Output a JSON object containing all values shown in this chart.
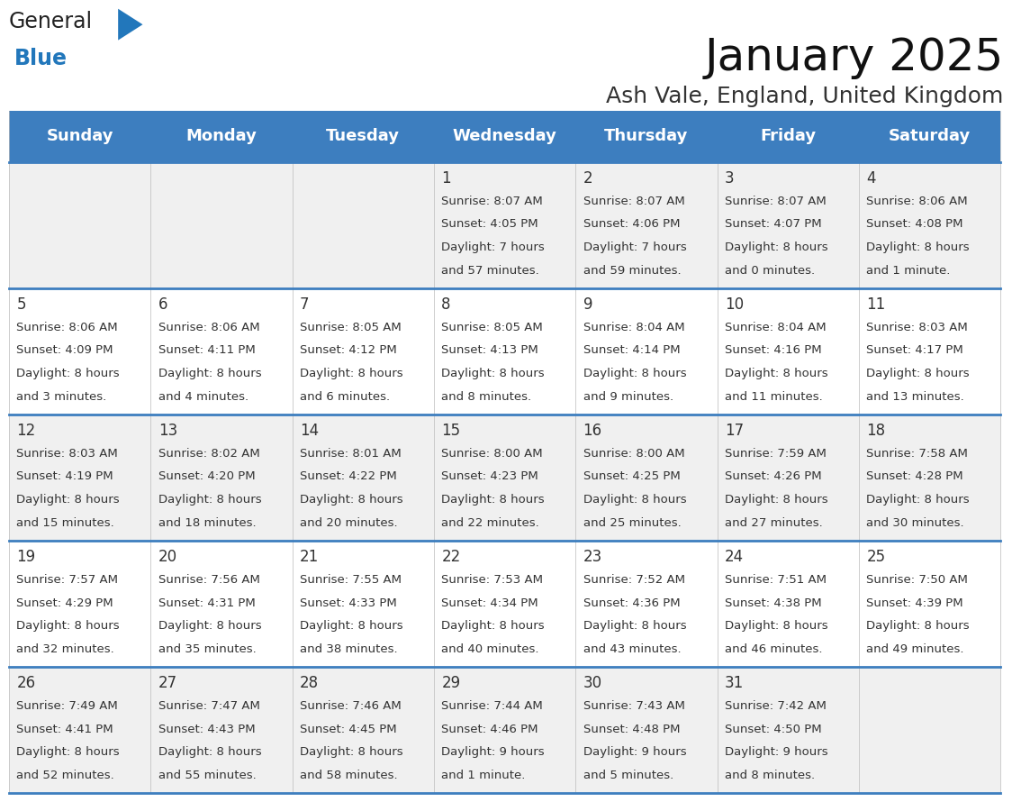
{
  "title": "January 2025",
  "subtitle": "Ash Vale, England, United Kingdom",
  "header_bg": "#3d7ebf",
  "header_text_color": "#ffffff",
  "cell_bg_row0": "#f0f0f0",
  "cell_bg_row1": "#ffffff",
  "cell_bg_row2": "#f0f0f0",
  "cell_bg_row3": "#ffffff",
  "cell_bg_row4": "#f0f0f0",
  "border_color": "#3d7ebf",
  "text_color": "#333333",
  "days_of_week": [
    "Sunday",
    "Monday",
    "Tuesday",
    "Wednesday",
    "Thursday",
    "Friday",
    "Saturday"
  ],
  "days": [
    {
      "day": 1,
      "col": 3,
      "row": 0,
      "sunrise": "8:07 AM",
      "sunset": "4:05 PM",
      "dl1": "Daylight: 7 hours",
      "dl2": "and 57 minutes."
    },
    {
      "day": 2,
      "col": 4,
      "row": 0,
      "sunrise": "8:07 AM",
      "sunset": "4:06 PM",
      "dl1": "Daylight: 7 hours",
      "dl2": "and 59 minutes."
    },
    {
      "day": 3,
      "col": 5,
      "row": 0,
      "sunrise": "8:07 AM",
      "sunset": "4:07 PM",
      "dl1": "Daylight: 8 hours",
      "dl2": "and 0 minutes."
    },
    {
      "day": 4,
      "col": 6,
      "row": 0,
      "sunrise": "8:06 AM",
      "sunset": "4:08 PM",
      "dl1": "Daylight: 8 hours",
      "dl2": "and 1 minute."
    },
    {
      "day": 5,
      "col": 0,
      "row": 1,
      "sunrise": "8:06 AM",
      "sunset": "4:09 PM",
      "dl1": "Daylight: 8 hours",
      "dl2": "and 3 minutes."
    },
    {
      "day": 6,
      "col": 1,
      "row": 1,
      "sunrise": "8:06 AM",
      "sunset": "4:11 PM",
      "dl1": "Daylight: 8 hours",
      "dl2": "and 4 minutes."
    },
    {
      "day": 7,
      "col": 2,
      "row": 1,
      "sunrise": "8:05 AM",
      "sunset": "4:12 PM",
      "dl1": "Daylight: 8 hours",
      "dl2": "and 6 minutes."
    },
    {
      "day": 8,
      "col": 3,
      "row": 1,
      "sunrise": "8:05 AM",
      "sunset": "4:13 PM",
      "dl1": "Daylight: 8 hours",
      "dl2": "and 8 minutes."
    },
    {
      "day": 9,
      "col": 4,
      "row": 1,
      "sunrise": "8:04 AM",
      "sunset": "4:14 PM",
      "dl1": "Daylight: 8 hours",
      "dl2": "and 9 minutes."
    },
    {
      "day": 10,
      "col": 5,
      "row": 1,
      "sunrise": "8:04 AM",
      "sunset": "4:16 PM",
      "dl1": "Daylight: 8 hours",
      "dl2": "and 11 minutes."
    },
    {
      "day": 11,
      "col": 6,
      "row": 1,
      "sunrise": "8:03 AM",
      "sunset": "4:17 PM",
      "dl1": "Daylight: 8 hours",
      "dl2": "and 13 minutes."
    },
    {
      "day": 12,
      "col": 0,
      "row": 2,
      "sunrise": "8:03 AM",
      "sunset": "4:19 PM",
      "dl1": "Daylight: 8 hours",
      "dl2": "and 15 minutes."
    },
    {
      "day": 13,
      "col": 1,
      "row": 2,
      "sunrise": "8:02 AM",
      "sunset": "4:20 PM",
      "dl1": "Daylight: 8 hours",
      "dl2": "and 18 minutes."
    },
    {
      "day": 14,
      "col": 2,
      "row": 2,
      "sunrise": "8:01 AM",
      "sunset": "4:22 PM",
      "dl1": "Daylight: 8 hours",
      "dl2": "and 20 minutes."
    },
    {
      "day": 15,
      "col": 3,
      "row": 2,
      "sunrise": "8:00 AM",
      "sunset": "4:23 PM",
      "dl1": "Daylight: 8 hours",
      "dl2": "and 22 minutes."
    },
    {
      "day": 16,
      "col": 4,
      "row": 2,
      "sunrise": "8:00 AM",
      "sunset": "4:25 PM",
      "dl1": "Daylight: 8 hours",
      "dl2": "and 25 minutes."
    },
    {
      "day": 17,
      "col": 5,
      "row": 2,
      "sunrise": "7:59 AM",
      "sunset": "4:26 PM",
      "dl1": "Daylight: 8 hours",
      "dl2": "and 27 minutes."
    },
    {
      "day": 18,
      "col": 6,
      "row": 2,
      "sunrise": "7:58 AM",
      "sunset": "4:28 PM",
      "dl1": "Daylight: 8 hours",
      "dl2": "and 30 minutes."
    },
    {
      "day": 19,
      "col": 0,
      "row": 3,
      "sunrise": "7:57 AM",
      "sunset": "4:29 PM",
      "dl1": "Daylight: 8 hours",
      "dl2": "and 32 minutes."
    },
    {
      "day": 20,
      "col": 1,
      "row": 3,
      "sunrise": "7:56 AM",
      "sunset": "4:31 PM",
      "dl1": "Daylight: 8 hours",
      "dl2": "and 35 minutes."
    },
    {
      "day": 21,
      "col": 2,
      "row": 3,
      "sunrise": "7:55 AM",
      "sunset": "4:33 PM",
      "dl1": "Daylight: 8 hours",
      "dl2": "and 38 minutes."
    },
    {
      "day": 22,
      "col": 3,
      "row": 3,
      "sunrise": "7:53 AM",
      "sunset": "4:34 PM",
      "dl1": "Daylight: 8 hours",
      "dl2": "and 40 minutes."
    },
    {
      "day": 23,
      "col": 4,
      "row": 3,
      "sunrise": "7:52 AM",
      "sunset": "4:36 PM",
      "dl1": "Daylight: 8 hours",
      "dl2": "and 43 minutes."
    },
    {
      "day": 24,
      "col": 5,
      "row": 3,
      "sunrise": "7:51 AM",
      "sunset": "4:38 PM",
      "dl1": "Daylight: 8 hours",
      "dl2": "and 46 minutes."
    },
    {
      "day": 25,
      "col": 6,
      "row": 3,
      "sunrise": "7:50 AM",
      "sunset": "4:39 PM",
      "dl1": "Daylight: 8 hours",
      "dl2": "and 49 minutes."
    },
    {
      "day": 26,
      "col": 0,
      "row": 4,
      "sunrise": "7:49 AM",
      "sunset": "4:41 PM",
      "dl1": "Daylight: 8 hours",
      "dl2": "and 52 minutes."
    },
    {
      "day": 27,
      "col": 1,
      "row": 4,
      "sunrise": "7:47 AM",
      "sunset": "4:43 PM",
      "dl1": "Daylight: 8 hours",
      "dl2": "and 55 minutes."
    },
    {
      "day": 28,
      "col": 2,
      "row": 4,
      "sunrise": "7:46 AM",
      "sunset": "4:45 PM",
      "dl1": "Daylight: 8 hours",
      "dl2": "and 58 minutes."
    },
    {
      "day": 29,
      "col": 3,
      "row": 4,
      "sunrise": "7:44 AM",
      "sunset": "4:46 PM",
      "dl1": "Daylight: 9 hours",
      "dl2": "and 1 minute."
    },
    {
      "day": 30,
      "col": 4,
      "row": 4,
      "sunrise": "7:43 AM",
      "sunset": "4:48 PM",
      "dl1": "Daylight: 9 hours",
      "dl2": "and 5 minutes."
    },
    {
      "day": 31,
      "col": 5,
      "row": 4,
      "sunrise": "7:42 AM",
      "sunset": "4:50 PM",
      "dl1": "Daylight: 9 hours",
      "dl2": "and 8 minutes."
    }
  ],
  "logo_general_color": "#222222",
  "logo_blue_color": "#2277bb",
  "logo_triangle_color": "#2277bb",
  "title_fontsize": 36,
  "subtitle_fontsize": 18,
  "header_fontsize": 13,
  "day_num_fontsize": 12,
  "info_fontsize": 9.5
}
